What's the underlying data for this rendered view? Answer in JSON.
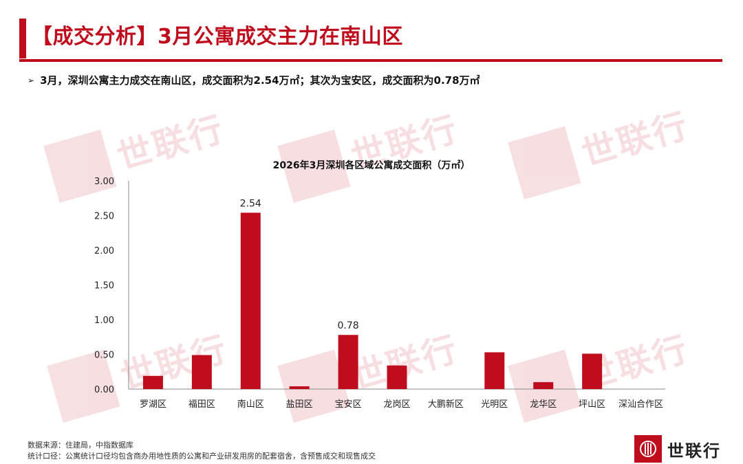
{
  "header": {
    "title": "【成交分析】3月公寓成交主力在南山区"
  },
  "bullet": {
    "arrow": "➢",
    "text": "3月，深圳公寓主力成交在南山区，成交面积为2.54万㎡；其次为宝安区，成交面积为0.78万㎡"
  },
  "watermark": {
    "text": "世联行"
  },
  "footer": {
    "source": "数据来源：住建局，中指数据库",
    "note": "统计口径：公寓统计口径均包含商办用地性质的公寓和产业研发用房的配套宿舍，含预售成交和现售成交"
  },
  "logo": {
    "text": "世联行"
  },
  "colors": {
    "brand": "#c00d1e",
    "bar": "#c00d1e"
  },
  "chart_data": {
    "type": "bar",
    "title": "2026年3月深圳各区域公寓成交面积（万㎡）",
    "categories": [
      "罗湖区",
      "福田区",
      "南山区",
      "盐田区",
      "宝安区",
      "龙岗区",
      "大鹏新区",
      "光明区",
      "龙华区",
      "坪山区",
      "深汕合作区"
    ],
    "values": [
      0.19,
      0.49,
      2.54,
      0.04,
      0.78,
      0.34,
      0,
      0.53,
      0.1,
      0.51,
      0
    ],
    "data_labels": {
      "南山区": "2.54",
      "宝安区": "0.78"
    },
    "ylim": [
      0,
      3
    ],
    "yticks": [
      "0.00",
      "0.50",
      "1.00",
      "1.50",
      "2.00",
      "2.50",
      "3.00"
    ],
    "grid": false
  }
}
